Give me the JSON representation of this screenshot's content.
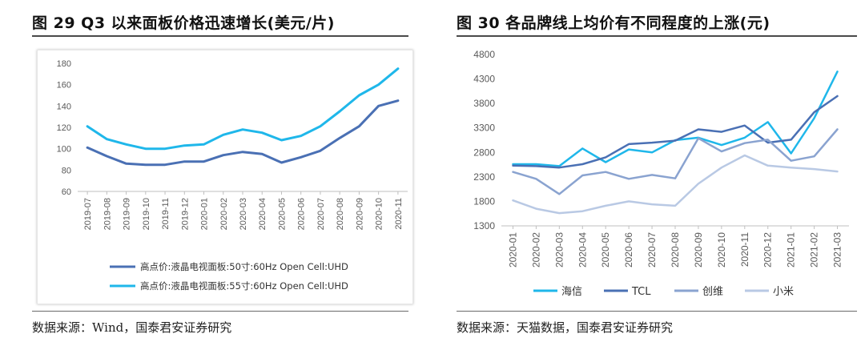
{
  "colors": {
    "dark_blue": "#4a70b4",
    "cyan": "#1fb7ea",
    "steel": "#8aa3d0",
    "pale": "#b9c9e4",
    "axis_text": "#595959"
  },
  "left": {
    "title": "图  29 Q3 以来面板价格迅速增长(美元/片)",
    "source": "数据来源：Wind，国泰君安证券研究",
    "chart_data": {
      "type": "line",
      "categories": [
        "2019-07",
        "2019-08",
        "2019-09",
        "2019-10",
        "2019-11",
        "2019-12",
        "2020-01",
        "2020-02",
        "2020-03",
        "2020-04",
        "2020-05",
        "2020-06",
        "2020-07",
        "2020-08",
        "2020-09",
        "2020-10",
        "2020-11"
      ],
      "ylim": [
        60,
        180
      ],
      "yticks": [
        60,
        80,
        100,
        120,
        140,
        160,
        180
      ],
      "series": [
        {
          "name": "高点价:液晶电视面板:50寸:60Hz Open Cell:UHD",
          "color": "#4a70b4",
          "values": [
            101,
            93,
            86,
            85,
            85,
            88,
            88,
            94,
            97,
            95,
            87,
            92,
            98,
            110,
            121,
            140,
            145
          ]
        },
        {
          "name": "高点价:液晶电视面板:55寸:60Hz Open Cell:UHD",
          "color": "#1fb7ea",
          "values": [
            121,
            109,
            104,
            100,
            100,
            103,
            104,
            113,
            118,
            115,
            108,
            112,
            121,
            135,
            150,
            160,
            175
          ]
        }
      ],
      "legend": "bottom"
    }
  },
  "right": {
    "title": "图  30 各品牌线上均价有不同程度的上涨(元)",
    "source": "数据来源：天猫数据，国泰君安证券研究",
    "chart_data": {
      "type": "line",
      "categories": [
        "2020-01",
        "2020-02",
        "2020-03",
        "2020-04",
        "2020-05",
        "2020-06",
        "2020-07",
        "2020-08",
        "2020-09",
        "2020-10",
        "2020-11",
        "2020-12",
        "2021-01",
        "2021-02",
        "2021-03"
      ],
      "ylim": [
        1300,
        4800
      ],
      "yticks": [
        1300,
        1800,
        2300,
        2800,
        3300,
        3800,
        4300,
        4800
      ],
      "series": [
        {
          "name": "海信",
          "color": "#1fb7ea",
          "values": [
            2560,
            2560,
            2520,
            2880,
            2600,
            2860,
            2800,
            3050,
            3100,
            2950,
            3100,
            3420,
            2780,
            3500,
            4450
          ]
        },
        {
          "name": "TCL",
          "color": "#4a70b4",
          "values": [
            2530,
            2520,
            2490,
            2560,
            2700,
            2970,
            3000,
            3040,
            3270,
            3220,
            3350,
            3000,
            3060,
            3620,
            3950
          ]
        },
        {
          "name": "创维",
          "color": "#8aa3d0",
          "values": [
            2400,
            2260,
            1950,
            2330,
            2400,
            2260,
            2340,
            2270,
            3090,
            2820,
            2990,
            3060,
            2630,
            2720,
            3270
          ]
        },
        {
          "name": "小米",
          "color": "#b9c9e4",
          "values": [
            1820,
            1650,
            1560,
            1600,
            1710,
            1800,
            1740,
            1710,
            2160,
            2490,
            2740,
            2530,
            2490,
            2460,
            2410
          ]
        }
      ],
      "legend": "bottom"
    }
  }
}
